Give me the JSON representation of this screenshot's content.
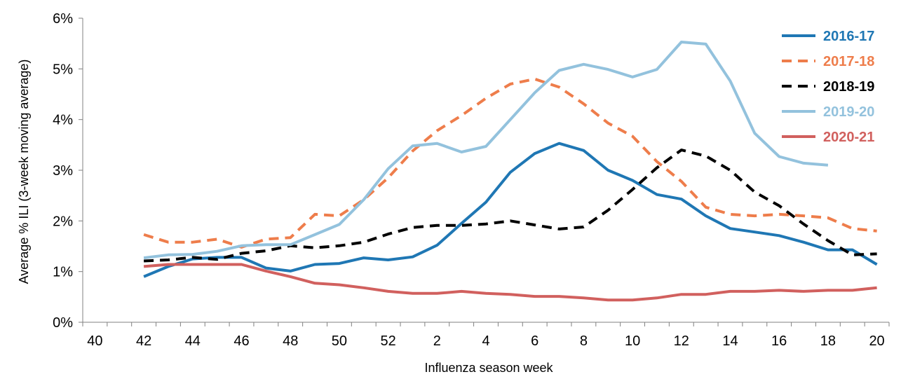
{
  "chart_data": {
    "type": "line",
    "title": "",
    "xlabel": "Influenza season week",
    "ylabel": "Average % ILI (3-week moving average)",
    "ylim": [
      0,
      6
    ],
    "yticks": [
      "0%",
      "1%",
      "2%",
      "3%",
      "4%",
      "5%",
      "6%"
    ],
    "week_order": [
      40,
      41,
      42,
      43,
      44,
      45,
      46,
      47,
      48,
      49,
      50,
      51,
      52,
      1,
      2,
      3,
      4,
      5,
      6,
      7,
      8,
      9,
      10,
      11,
      12,
      13,
      14,
      15,
      16,
      17,
      18,
      19,
      20
    ],
    "xtick_labels": [
      "40",
      "42",
      "44",
      "46",
      "48",
      "50",
      "52",
      "2",
      "4",
      "6",
      "8",
      "10",
      "12",
      "14",
      "16",
      "18",
      "20"
    ],
    "legend_position": "top-right",
    "series": [
      {
        "name": "2016-17",
        "color": "#1f77b4",
        "dash": "solid",
        "weeks": [
          42,
          43,
          44,
          45,
          46,
          47,
          48,
          49,
          50,
          51,
          52,
          1,
          2,
          3,
          4,
          5,
          6,
          7,
          8,
          9,
          10,
          11,
          12,
          13,
          14,
          15,
          16,
          17,
          18,
          19,
          20
        ],
        "values": [
          0.9,
          1.1,
          1.25,
          1.28,
          1.28,
          1.07,
          1.01,
          1.14,
          1.16,
          1.27,
          1.23,
          1.29,
          1.52,
          1.95,
          2.37,
          2.96,
          3.33,
          3.53,
          3.39,
          3.0,
          2.8,
          2.52,
          2.43,
          2.1,
          1.85,
          1.78,
          1.71,
          1.58,
          1.43,
          1.43,
          1.14
        ]
      },
      {
        "name": "2017-18",
        "color": "#ee7d4b",
        "dash": "dashed",
        "weeks": [
          42,
          43,
          44,
          45,
          46,
          47,
          48,
          49,
          50,
          51,
          52,
          1,
          2,
          3,
          4,
          5,
          6,
          7,
          8,
          9,
          10,
          11,
          12,
          13,
          14,
          15,
          16,
          17,
          18,
          19,
          20
        ],
        "values": [
          1.73,
          1.58,
          1.58,
          1.64,
          1.48,
          1.64,
          1.67,
          2.13,
          2.1,
          2.42,
          2.85,
          3.38,
          3.78,
          4.08,
          4.42,
          4.7,
          4.8,
          4.64,
          4.31,
          3.93,
          3.67,
          3.17,
          2.78,
          2.27,
          2.13,
          2.1,
          2.13,
          2.1,
          2.06,
          1.85,
          1.8
        ]
      },
      {
        "name": "2018-19",
        "color": "#000000",
        "dash": "dashed",
        "weeks": [
          42,
          43,
          44,
          45,
          46,
          47,
          48,
          49,
          50,
          51,
          52,
          1,
          2,
          3,
          4,
          5,
          6,
          7,
          8,
          9,
          10,
          11,
          12,
          13,
          14,
          15,
          16,
          17,
          18,
          19,
          20
        ],
        "values": [
          1.21,
          1.23,
          1.28,
          1.24,
          1.36,
          1.41,
          1.51,
          1.47,
          1.51,
          1.58,
          1.74,
          1.87,
          1.91,
          1.91,
          1.94,
          2.0,
          1.92,
          1.84,
          1.88,
          2.21,
          2.62,
          3.05,
          3.4,
          3.28,
          3.0,
          2.57,
          2.3,
          1.94,
          1.61,
          1.33,
          1.35
        ]
      },
      {
        "name": "2019-20",
        "color": "#93c2dd",
        "dash": "solid",
        "weeks": [
          42,
          43,
          44,
          45,
          46,
          47,
          48,
          49,
          50,
          51,
          52,
          1,
          2,
          3,
          4,
          5,
          6,
          7,
          8,
          9,
          10,
          11,
          12,
          13,
          14,
          15,
          16,
          17,
          18
        ],
        "values": [
          1.27,
          1.33,
          1.34,
          1.4,
          1.51,
          1.53,
          1.53,
          1.73,
          1.93,
          2.42,
          3.03,
          3.48,
          3.53,
          3.36,
          3.47,
          4.0,
          4.53,
          4.97,
          5.09,
          4.99,
          4.84,
          4.99,
          5.53,
          5.49,
          4.76,
          3.73,
          3.27,
          3.14,
          3.1
        ]
      },
      {
        "name": "2020-21",
        "color": "#d1605e",
        "dash": "solid",
        "weeks": [
          42,
          43,
          44,
          45,
          46,
          47,
          48,
          49,
          50,
          51,
          52,
          1,
          2,
          3,
          4,
          5,
          6,
          7,
          8,
          9,
          10,
          11,
          12,
          13,
          14,
          15,
          16,
          17,
          18,
          19,
          20
        ],
        "values": [
          1.1,
          1.14,
          1.14,
          1.14,
          1.14,
          1.01,
          0.9,
          0.77,
          0.74,
          0.68,
          0.61,
          0.57,
          0.57,
          0.61,
          0.57,
          0.55,
          0.51,
          0.51,
          0.48,
          0.44,
          0.44,
          0.48,
          0.55,
          0.55,
          0.61,
          0.61,
          0.63,
          0.61,
          0.63,
          0.63,
          0.68
        ]
      }
    ]
  }
}
